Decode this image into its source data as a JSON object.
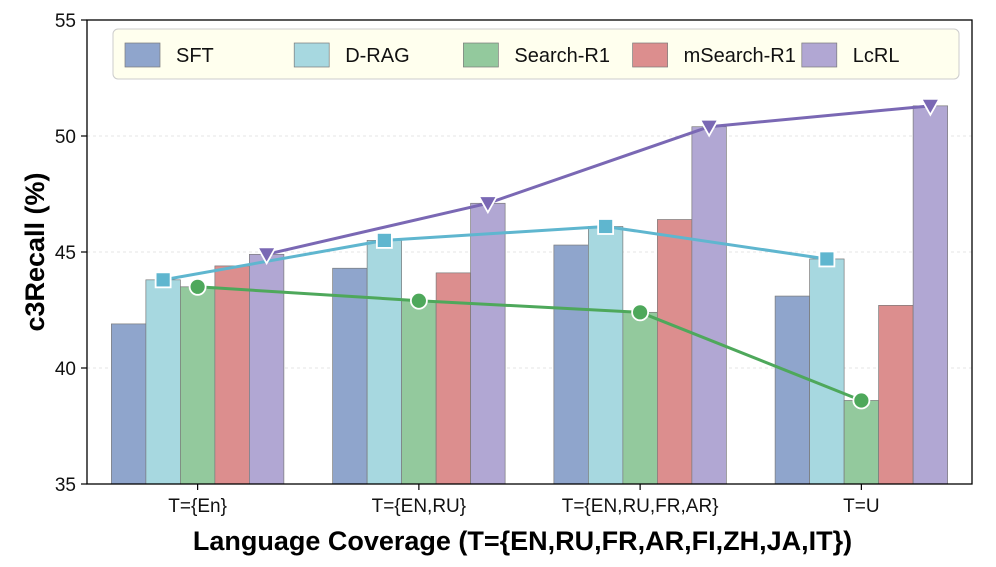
{
  "chart_data": {
    "type": "bar",
    "title": "",
    "xlabel": "Language Coverage (T={EN,RU,FR,AR,FI,ZH,JA,IT})",
    "ylabel": "c3Recall (%)",
    "ylim": [
      35,
      55
    ],
    "yticks": [
      35,
      40,
      45,
      50,
      55
    ],
    "grid": true,
    "legend_position": "top",
    "categories": [
      "T={En}",
      "T={EN,RU}",
      "T={EN,RU,FR,AR}",
      "T=U"
    ],
    "series": [
      {
        "name": "SFT",
        "values": [
          41.9,
          44.3,
          45.3,
          43.1
        ],
        "color": "#8fa5cc"
      },
      {
        "name": "D-RAG",
        "values": [
          43.8,
          45.5,
          46.1,
          44.7
        ],
        "color": "#a7d8e0"
      },
      {
        "name": "Search-R1",
        "values": [
          43.5,
          42.9,
          42.4,
          38.6
        ],
        "color": "#93c99d"
      },
      {
        "name": "mSearch-R1",
        "values": [
          44.4,
          44.1,
          46.4,
          42.7
        ],
        "color": "#dc8e8e"
      },
      {
        "name": "LcRL",
        "values": [
          44.9,
          47.1,
          50.4,
          51.3
        ],
        "color": "#b1a7d3"
      }
    ],
    "trend_lines": [
      {
        "series": "D-RAG",
        "marker": "square",
        "color": "#5fb6cf"
      },
      {
        "series": "Search-R1",
        "marker": "circle",
        "color": "#4ea85b"
      },
      {
        "series": "LcRL",
        "marker": "triangle-down",
        "color": "#7a68b4"
      }
    ]
  }
}
